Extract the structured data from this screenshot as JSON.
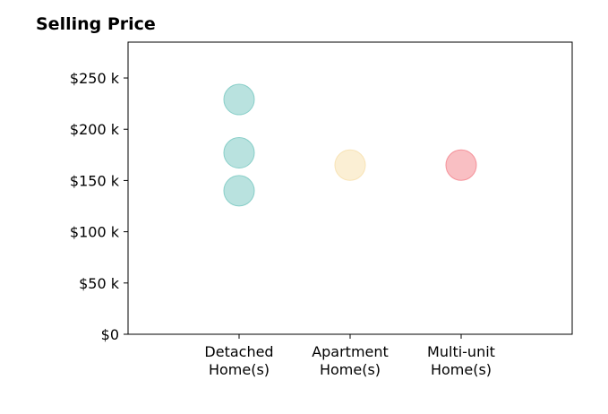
{
  "chart_data": {
    "type": "scatter",
    "title": "Selling Price",
    "categories": [
      "Detached\nHome(s)",
      "Apartment\nHome(s)",
      "Multi-unit\nHome(s)"
    ],
    "points": [
      {
        "category": 0,
        "value": 229000,
        "color": "#80CBC4"
      },
      {
        "category": 0,
        "value": 177000,
        "color": "#80CBC4"
      },
      {
        "category": 0,
        "value": 140000,
        "color": "#80CBC4"
      },
      {
        "category": 1,
        "value": 165000,
        "color": "#F7E1B0"
      },
      {
        "category": 2,
        "value": 165000,
        "color": "#F48A92"
      }
    ],
    "yticks": [
      0,
      50000,
      100000,
      150000,
      200000,
      250000
    ],
    "ytick_labels": [
      "$0",
      "$50 k",
      "$100 k",
      "$150 k",
      "$200 k",
      "$250 k"
    ],
    "ylim": [
      0,
      285000
    ],
    "xlim": [
      -1,
      3
    ],
    "xlabel": "",
    "ylabel": "",
    "grid": false,
    "legend": "none"
  }
}
